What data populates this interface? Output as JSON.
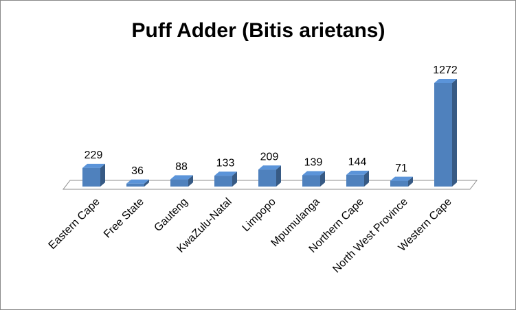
{
  "chart_data": {
    "type": "bar3d",
    "title": "Puff Adder (Bitis arietans)",
    "categories": [
      "Eastern Cape",
      "Free State",
      "Gauteng",
      "KwaZulu-Natal",
      "Limpopo",
      "Mpumulanga",
      "Northern Cape",
      "North West Province",
      "Western Cape"
    ],
    "values": [
      229,
      36,
      88,
      133,
      209,
      139,
      144,
      71,
      1272
    ],
    "color": "#4f81bd"
  }
}
